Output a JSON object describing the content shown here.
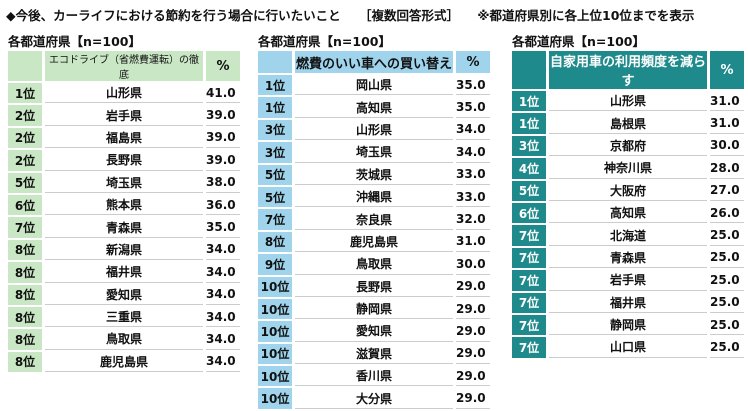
{
  "header": {
    "title": "◆今後、カーライフにおける節約を行う場合に行いたいこと",
    "note": "［複数回答形式］",
    "scope": "※都道府県別に各上位10位までを表示"
  },
  "tables": [
    {
      "subtitle": "各都道府県【n=100】",
      "item": "エコドライブ（省燃費運転）の徹底",
      "unit": "%",
      "rows": [
        [
          "1位",
          "山形県",
          "41.0"
        ],
        [
          "2位",
          "岩手県",
          "39.0"
        ],
        [
          "2位",
          "福島県",
          "39.0"
        ],
        [
          "2位",
          "長野県",
          "39.0"
        ],
        [
          "5位",
          "埼玉県",
          "38.0"
        ],
        [
          "6位",
          "熊本県",
          "36.0"
        ],
        [
          "7位",
          "青森県",
          "35.0"
        ],
        [
          "8位",
          "新潟県",
          "34.0"
        ],
        [
          "8位",
          "福井県",
          "34.0"
        ],
        [
          "8位",
          "愛知県",
          "34.0"
        ],
        [
          "8位",
          "三重県",
          "34.0"
        ],
        [
          "8位",
          "鳥取県",
          "34.0"
        ],
        [
          "8位",
          "鹿児島県",
          "34.0"
        ]
      ]
    },
    {
      "subtitle": "各都道府県【n=100】",
      "item": "燃費のいい車への買い替え",
      "unit": "%",
      "rows": [
        [
          "1位",
          "岡山県",
          "35.0"
        ],
        [
          "1位",
          "高知県",
          "35.0"
        ],
        [
          "3位",
          "山形県",
          "34.0"
        ],
        [
          "3位",
          "埼玉県",
          "34.0"
        ],
        [
          "5位",
          "茨城県",
          "33.0"
        ],
        [
          "5位",
          "沖縄県",
          "33.0"
        ],
        [
          "7位",
          "奈良県",
          "32.0"
        ],
        [
          "8位",
          "鹿児島県",
          "31.0"
        ],
        [
          "9位",
          "鳥取県",
          "30.0"
        ],
        [
          "10位",
          "長野県",
          "29.0"
        ],
        [
          "10位",
          "静岡県",
          "29.0"
        ],
        [
          "10位",
          "愛知県",
          "29.0"
        ],
        [
          "10位",
          "滋賀県",
          "29.0"
        ],
        [
          "10位",
          "香川県",
          "29.0"
        ],
        [
          "10位",
          "大分県",
          "29.0"
        ]
      ]
    },
    {
      "subtitle": "各都道府県【n=100】",
      "item": "自家用車の利用頻度を減らす",
      "unit": "%",
      "rows": [
        [
          "1位",
          "山形県",
          "31.0"
        ],
        [
          "1位",
          "島根県",
          "31.0"
        ],
        [
          "3位",
          "京都府",
          "30.0"
        ],
        [
          "4位",
          "神奈川県",
          "28.0"
        ],
        [
          "5位",
          "大阪府",
          "27.0"
        ],
        [
          "6位",
          "高知県",
          "26.0"
        ],
        [
          "7位",
          "北海道",
          "25.0"
        ],
        [
          "7位",
          "青森県",
          "25.0"
        ],
        [
          "7位",
          "岩手県",
          "25.0"
        ],
        [
          "7位",
          "福井県",
          "25.0"
        ],
        [
          "7位",
          "静岡県",
          "25.0"
        ],
        [
          "7位",
          "山口県",
          "25.0"
        ]
      ]
    }
  ]
}
